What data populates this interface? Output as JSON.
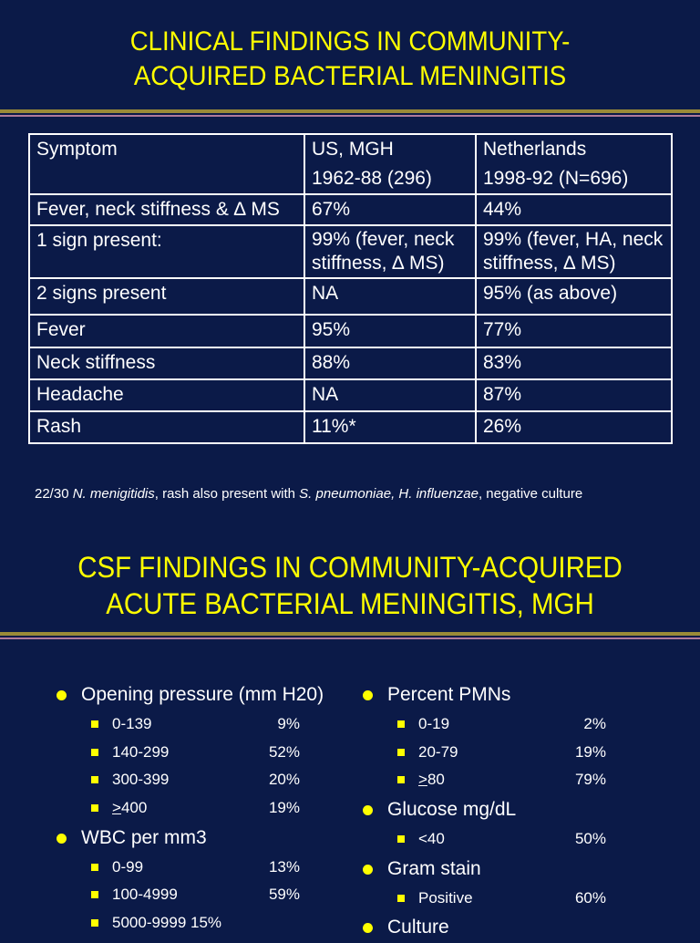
{
  "slide1": {
    "title_line1": "CLINICAL FINDINGS IN COMMUNITY-",
    "title_line2": "ACQUIRED BACTERIAL MENINGITIS",
    "table": {
      "header": {
        "symptom": "Symptom",
        "us_line1": "US, MGH",
        "us_line2": "1962-88 (296)",
        "nl_line1": "Netherlands",
        "nl_line2": "1998-92 (N=696)"
      },
      "rows": [
        {
          "symptom": "Fever, neck stiffness & ∆ MS",
          "us": "67%",
          "nl": "44%"
        },
        {
          "symptom": "1 sign present:",
          "us": "99% (fever, neck stiffness, ∆ MS)",
          "nl": "99% (fever, HA, neck stiffness, ∆ MS)"
        },
        {
          "symptom": "2 signs present",
          "us": "NA",
          "nl": "95% (as above)"
        },
        {
          "symptom": "Fever",
          "us": "95%",
          "nl": "77%"
        },
        {
          "symptom": "Neck stiffness",
          "us": "88%",
          "nl": "83%"
        },
        {
          "symptom": "Headache",
          "us": "NA",
          "nl": "87%"
        },
        {
          "symptom": "Rash",
          "us": "11%*",
          "nl": "26%"
        }
      ]
    },
    "footnote": {
      "part1": "22/30 ",
      "organism1": "N. menigitidis",
      "part2": ", rash also present with ",
      "organism2": "S. pneumoniae, H. influenzae",
      "part3": ", negative culture"
    }
  },
  "slide2": {
    "title_line1": "CSF FINDINGS IN COMMUNITY-ACQUIRED",
    "title_line2": "ACUTE BACTERIAL MENINGITIS, MGH",
    "left": [
      {
        "label": "Opening pressure (mm H20)",
        "items": [
          {
            "range": "0-139",
            "value": "9%"
          },
          {
            "range": "140-299",
            "value": "52%"
          },
          {
            "range": "300-399",
            "value": "20%"
          },
          {
            "range_prefix": ">",
            "range": "400",
            "value": "19%"
          }
        ]
      },
      {
        "label": "WBC per mm3",
        "items": [
          {
            "range": "0-99",
            "value": "13%"
          },
          {
            "range": "100-4999",
            "value": "59%"
          },
          {
            "range": "5000-9999 15%"
          }
        ]
      }
    ],
    "right": [
      {
        "label": "Percent PMNs",
        "items": [
          {
            "range": "0-19",
            "value": "2%"
          },
          {
            "range": "20-79",
            "value": "19%"
          },
          {
            "range_prefix": ">",
            "range": "80",
            "value": "79%"
          }
        ]
      },
      {
        "label": "Glucose mg/dL",
        "items": [
          {
            "range": "<40",
            "value": "50%"
          }
        ]
      },
      {
        "label": "Gram stain",
        "items": [
          {
            "range": "Positive",
            "value": "60%"
          }
        ]
      },
      {
        "label": "Culture",
        "items": []
      }
    ]
  },
  "colors": {
    "background": "#0b1a48",
    "title": "#ffff00",
    "bullet": "#ffff00",
    "text": "#ffffff"
  }
}
